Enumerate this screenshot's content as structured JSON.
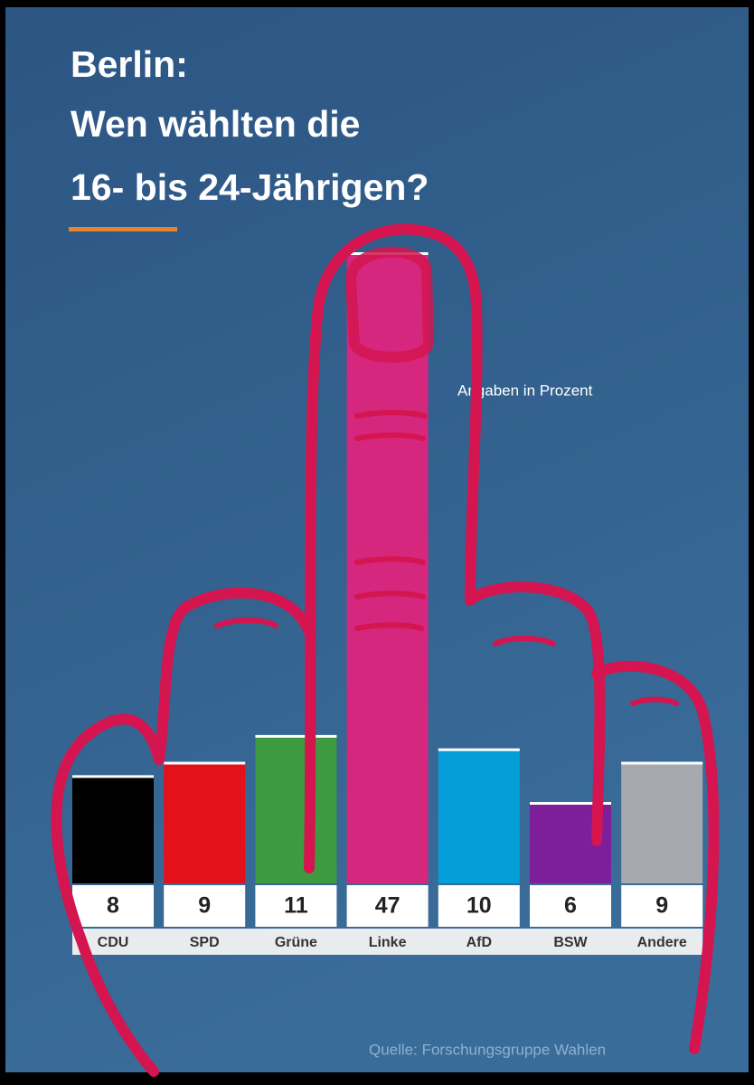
{
  "chart_data": {
    "type": "bar",
    "title": [
      "Berlin:",
      "Wen wählten die",
      "16- bis 24-Jährigen?"
    ],
    "subtitle": "Angaben in Prozent",
    "source": "Quelle: Forschungsgruppe Wahlen",
    "categories": [
      "CDU",
      "SPD",
      "Grüne",
      "Linke",
      "AfD",
      "BSW",
      "Andere"
    ],
    "values": [
      8,
      9,
      11,
      47,
      10,
      6,
      9
    ],
    "colors": [
      "#000000",
      "#e3111a",
      "#3e9a3e",
      "#d6277e",
      "#049fd8",
      "#7d1e9a",
      "#a6a9ae"
    ],
    "ylim": [
      0,
      47
    ]
  }
}
